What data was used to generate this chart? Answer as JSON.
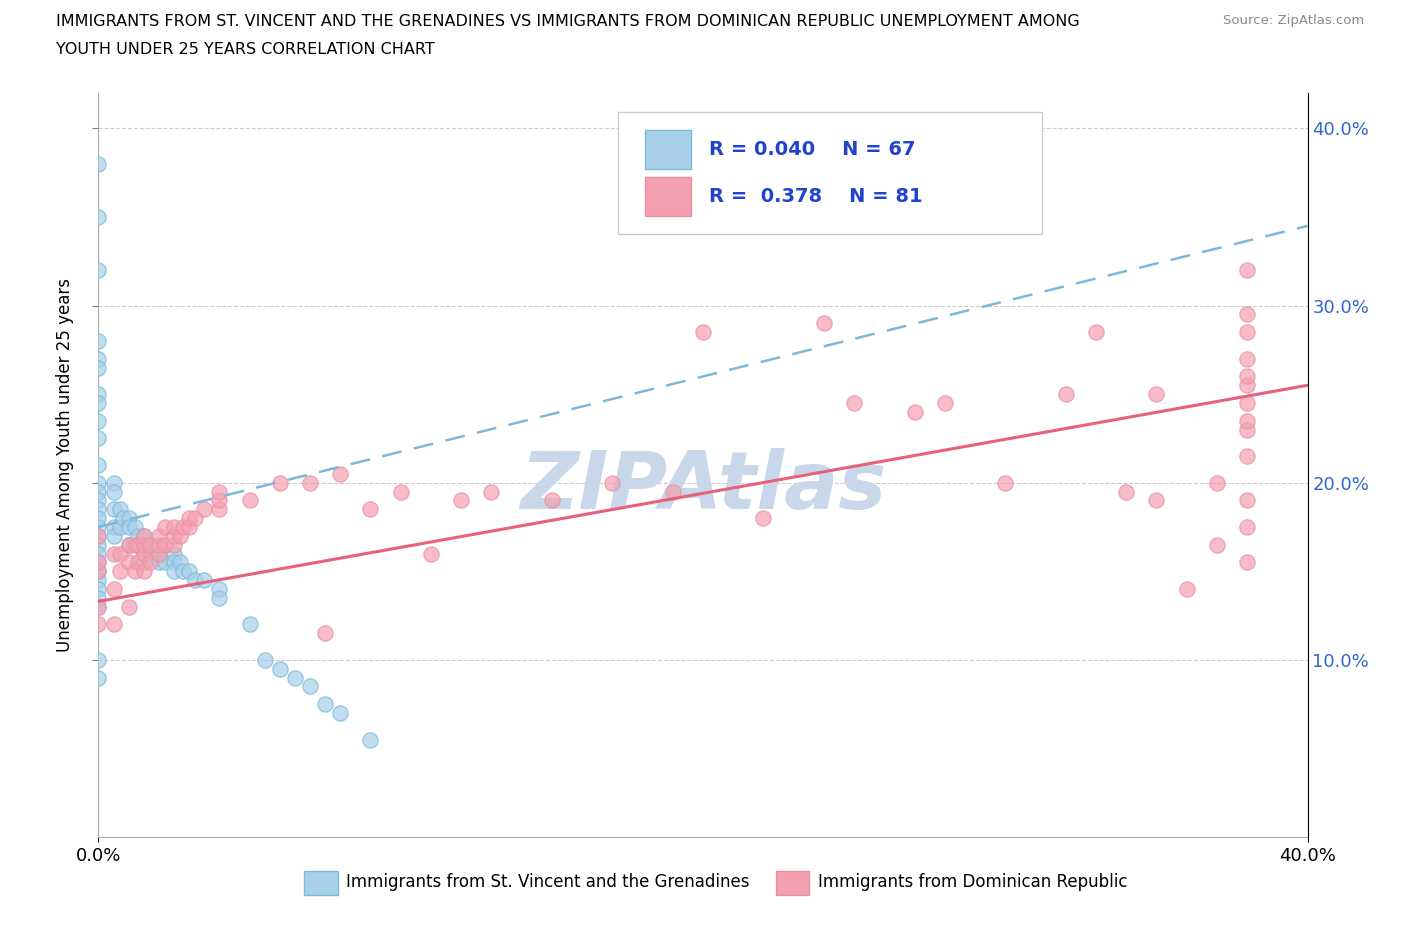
{
  "title_line1": "IMMIGRANTS FROM ST. VINCENT AND THE GRENADINES VS IMMIGRANTS FROM DOMINICAN REPUBLIC UNEMPLOYMENT AMONG",
  "title_line2": "YOUTH UNDER 25 YEARS CORRELATION CHART",
  "source": "Source: ZipAtlas.com",
  "ylabel": "Unemployment Among Youth under 25 years",
  "series1_label": "Immigrants from St. Vincent and the Grenadines",
  "series2_label": "Immigrants from Dominican Republic",
  "series1_R": "0.040",
  "series1_N": "67",
  "series2_R": "0.378",
  "series2_N": "81",
  "series1_color": "#A8D0E8",
  "series2_color": "#F4A0B0",
  "series1_line_color": "#7EB8D8",
  "series2_line_color": "#E8607A",
  "legend_text_color": "#2244CC",
  "right_tick_color": "#3366CC",
  "watermark_color": "#C8D8EA",
  "xmin": 0.0,
  "xmax": 0.4,
  "ymin": 0.0,
  "ymax": 0.42,
  "yticks": [
    0.1,
    0.2,
    0.3,
    0.4
  ],
  "ytick_labels": [
    "10.0%",
    "20.0%",
    "30.0%",
    "40.0%"
  ],
  "series1_x": [
    0.0,
    0.0,
    0.0,
    0.0,
    0.0,
    0.0,
    0.0,
    0.0,
    0.0,
    0.0,
    0.0,
    0.0,
    0.0,
    0.0,
    0.0,
    0.0,
    0.0,
    0.0,
    0.0,
    0.0,
    0.0,
    0.0,
    0.0,
    0.0,
    0.0,
    0.0,
    0.0,
    0.0,
    0.005,
    0.005,
    0.005,
    0.005,
    0.005,
    0.007,
    0.007,
    0.008,
    0.01,
    0.01,
    0.01,
    0.012,
    0.013,
    0.015,
    0.015,
    0.015,
    0.015,
    0.017,
    0.02,
    0.02,
    0.022,
    0.025,
    0.025,
    0.025,
    0.027,
    0.028,
    0.03,
    0.032,
    0.035,
    0.04,
    0.04,
    0.05,
    0.055,
    0.06,
    0.065,
    0.07,
    0.075,
    0.08,
    0.09
  ],
  "series1_y": [
    0.38,
    0.35,
    0.32,
    0.28,
    0.27,
    0.265,
    0.25,
    0.245,
    0.235,
    0.225,
    0.21,
    0.2,
    0.195,
    0.19,
    0.185,
    0.18,
    0.175,
    0.17,
    0.165,
    0.16,
    0.155,
    0.15,
    0.145,
    0.14,
    0.135,
    0.13,
    0.1,
    0.09,
    0.2,
    0.195,
    0.185,
    0.175,
    0.17,
    0.185,
    0.175,
    0.18,
    0.18,
    0.175,
    0.165,
    0.175,
    0.17,
    0.17,
    0.165,
    0.16,
    0.155,
    0.165,
    0.16,
    0.155,
    0.155,
    0.16,
    0.155,
    0.15,
    0.155,
    0.15,
    0.15,
    0.145,
    0.145,
    0.14,
    0.135,
    0.12,
    0.1,
    0.095,
    0.09,
    0.085,
    0.075,
    0.07,
    0.055
  ],
  "series2_x": [
    0.0,
    0.0,
    0.0,
    0.0,
    0.0,
    0.005,
    0.005,
    0.005,
    0.007,
    0.007,
    0.01,
    0.01,
    0.01,
    0.012,
    0.012,
    0.013,
    0.013,
    0.015,
    0.015,
    0.015,
    0.015,
    0.017,
    0.017,
    0.02,
    0.02,
    0.02,
    0.022,
    0.022,
    0.025,
    0.025,
    0.025,
    0.027,
    0.028,
    0.03,
    0.03,
    0.032,
    0.035,
    0.04,
    0.04,
    0.04,
    0.05,
    0.06,
    0.07,
    0.075,
    0.08,
    0.09,
    0.1,
    0.11,
    0.12,
    0.13,
    0.15,
    0.17,
    0.19,
    0.2,
    0.22,
    0.24,
    0.25,
    0.27,
    0.28,
    0.3,
    0.32,
    0.33,
    0.34,
    0.35,
    0.35,
    0.36,
    0.37,
    0.37,
    0.38,
    0.38,
    0.38,
    0.38,
    0.38,
    0.38,
    0.38,
    0.38,
    0.38,
    0.38,
    0.38,
    0.38,
    0.38
  ],
  "series2_y": [
    0.12,
    0.13,
    0.15,
    0.155,
    0.17,
    0.12,
    0.14,
    0.16,
    0.15,
    0.16,
    0.13,
    0.155,
    0.165,
    0.15,
    0.165,
    0.155,
    0.165,
    0.15,
    0.16,
    0.165,
    0.17,
    0.155,
    0.165,
    0.16,
    0.165,
    0.17,
    0.165,
    0.175,
    0.165,
    0.17,
    0.175,
    0.17,
    0.175,
    0.175,
    0.18,
    0.18,
    0.185,
    0.185,
    0.19,
    0.195,
    0.19,
    0.2,
    0.2,
    0.115,
    0.205,
    0.185,
    0.195,
    0.16,
    0.19,
    0.195,
    0.19,
    0.2,
    0.195,
    0.285,
    0.18,
    0.29,
    0.245,
    0.24,
    0.245,
    0.2,
    0.25,
    0.285,
    0.195,
    0.19,
    0.25,
    0.14,
    0.165,
    0.2,
    0.155,
    0.175,
    0.19,
    0.215,
    0.23,
    0.235,
    0.245,
    0.255,
    0.26,
    0.27,
    0.285,
    0.295,
    0.32
  ]
}
